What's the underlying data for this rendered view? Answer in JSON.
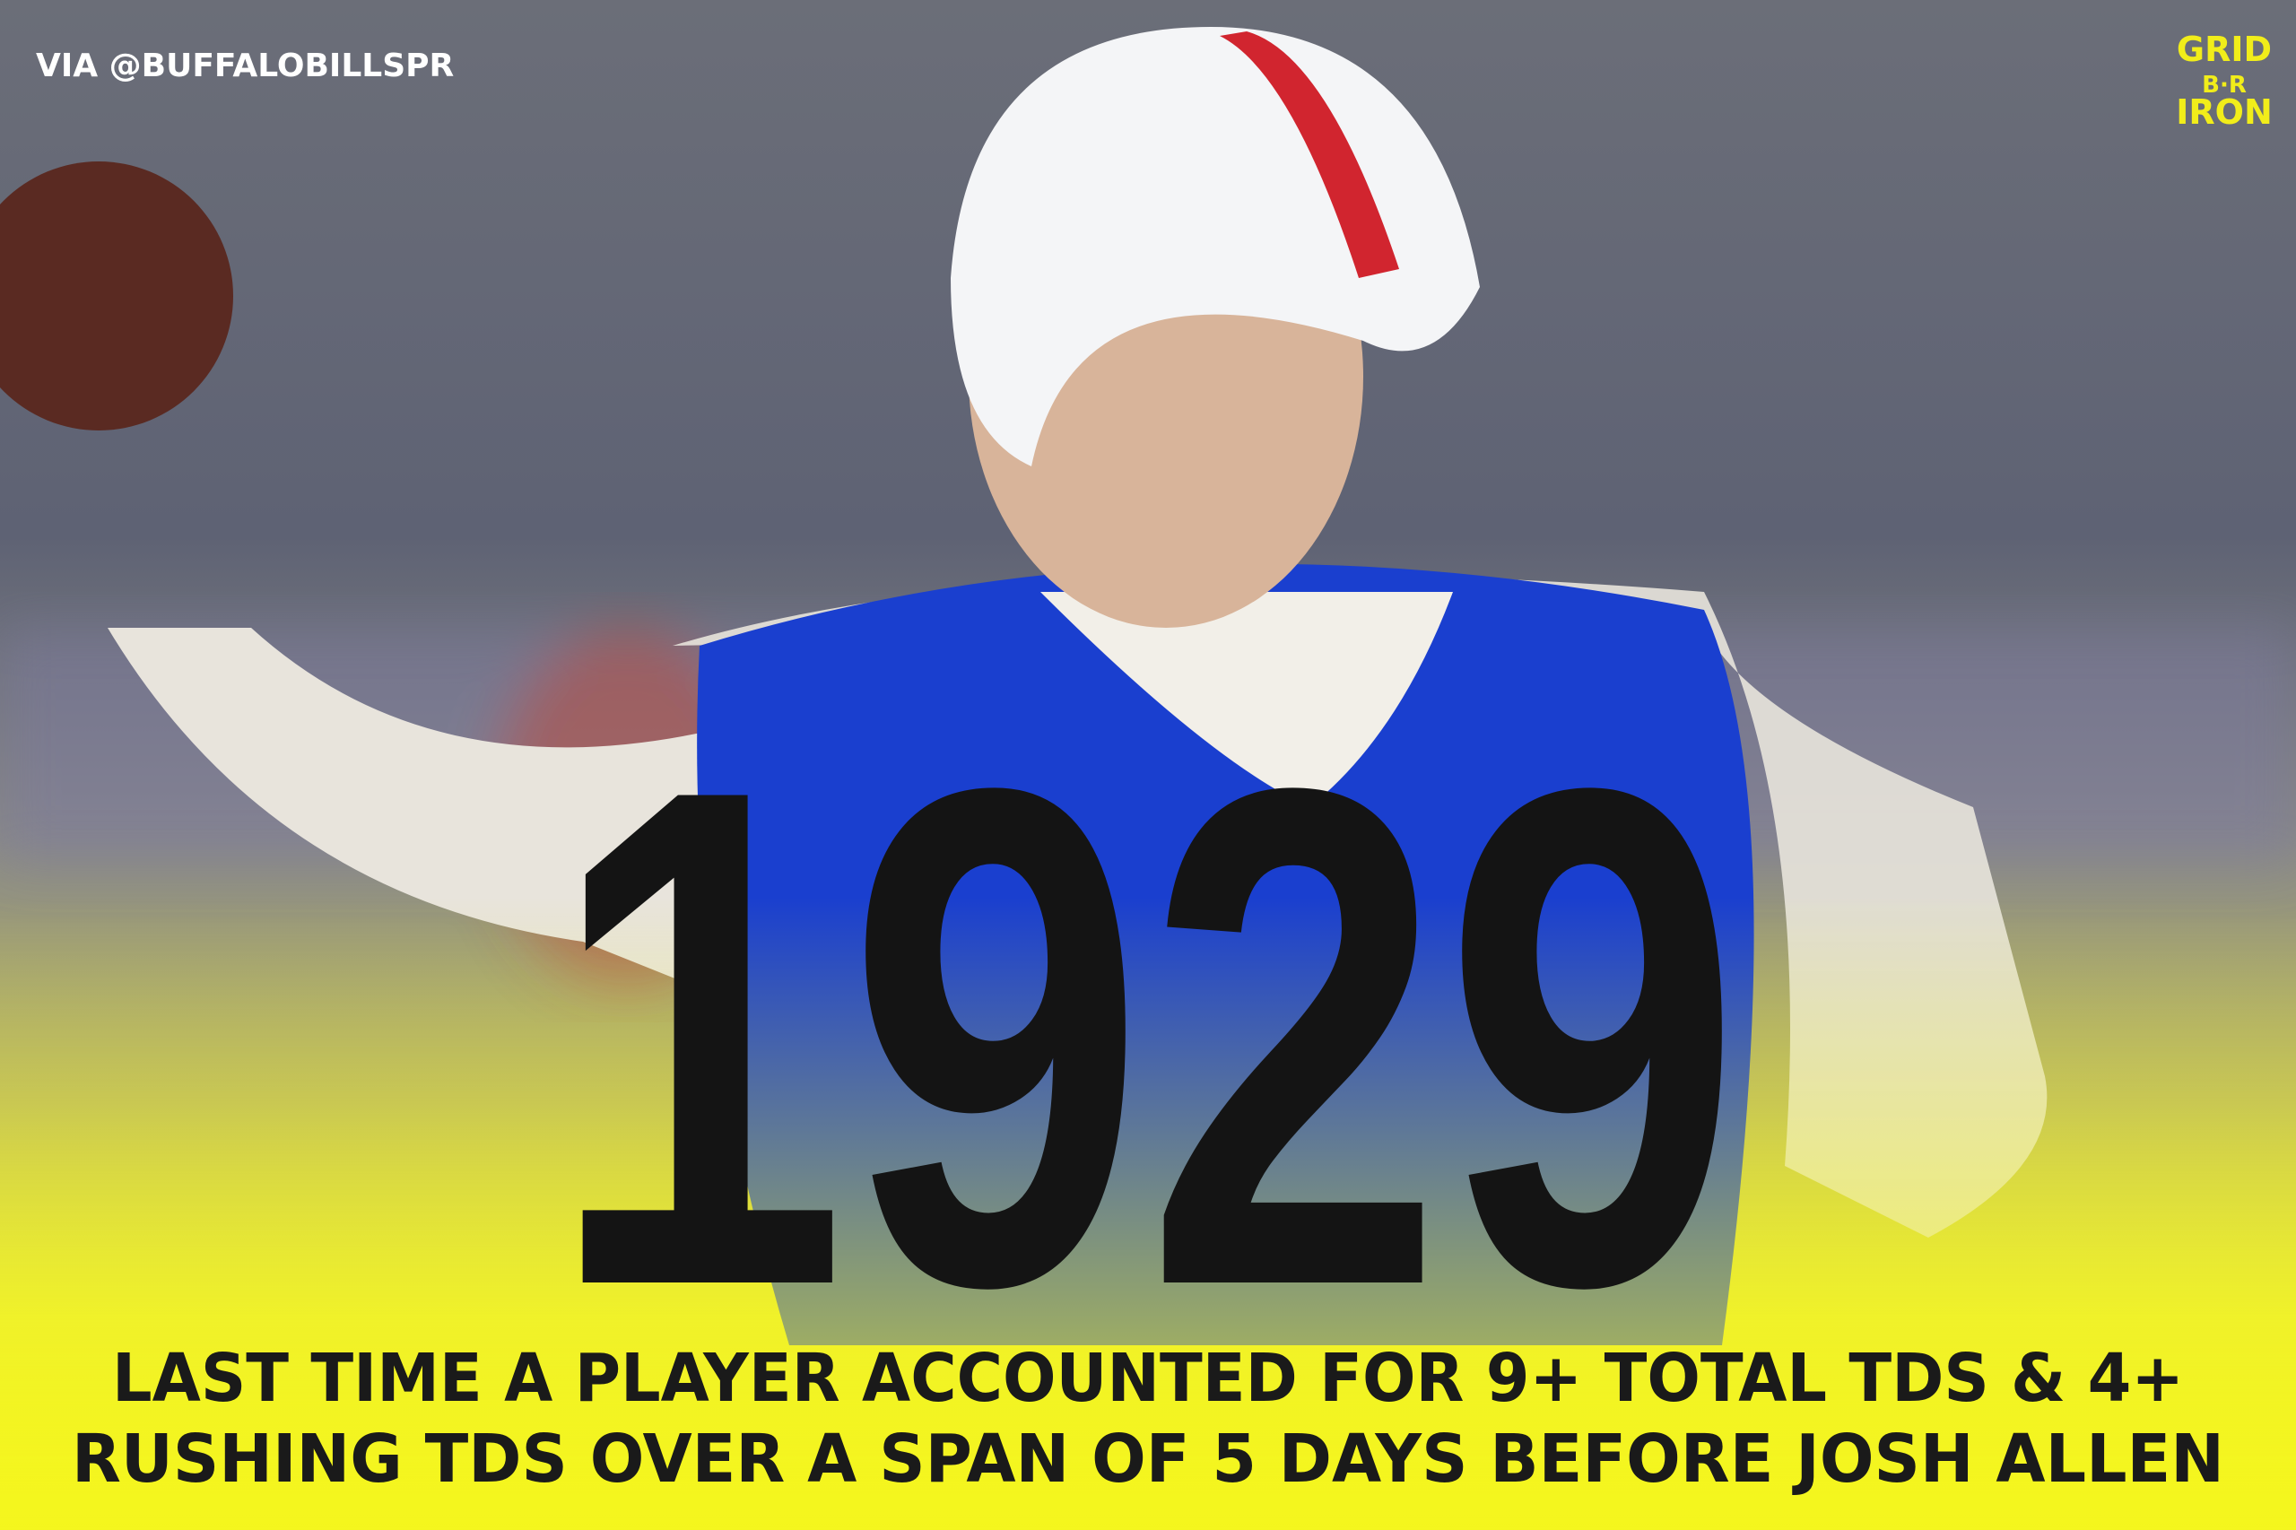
{
  "credit": "VIA @BUFFALOBILLSPR",
  "logo": {
    "lines": [
      "GRID",
      "B·R",
      "IRON"
    ]
  },
  "headline": "1929",
  "caption": {
    "lines": [
      "LAST TIME A PLAYER ACCOUNTED FOR 9+ TOTAL TDS & 4+",
      "RUSHING TDS OVER A SPAN OF 5 DAYS BEFORE JOSH ALLEN"
    ]
  }
}
